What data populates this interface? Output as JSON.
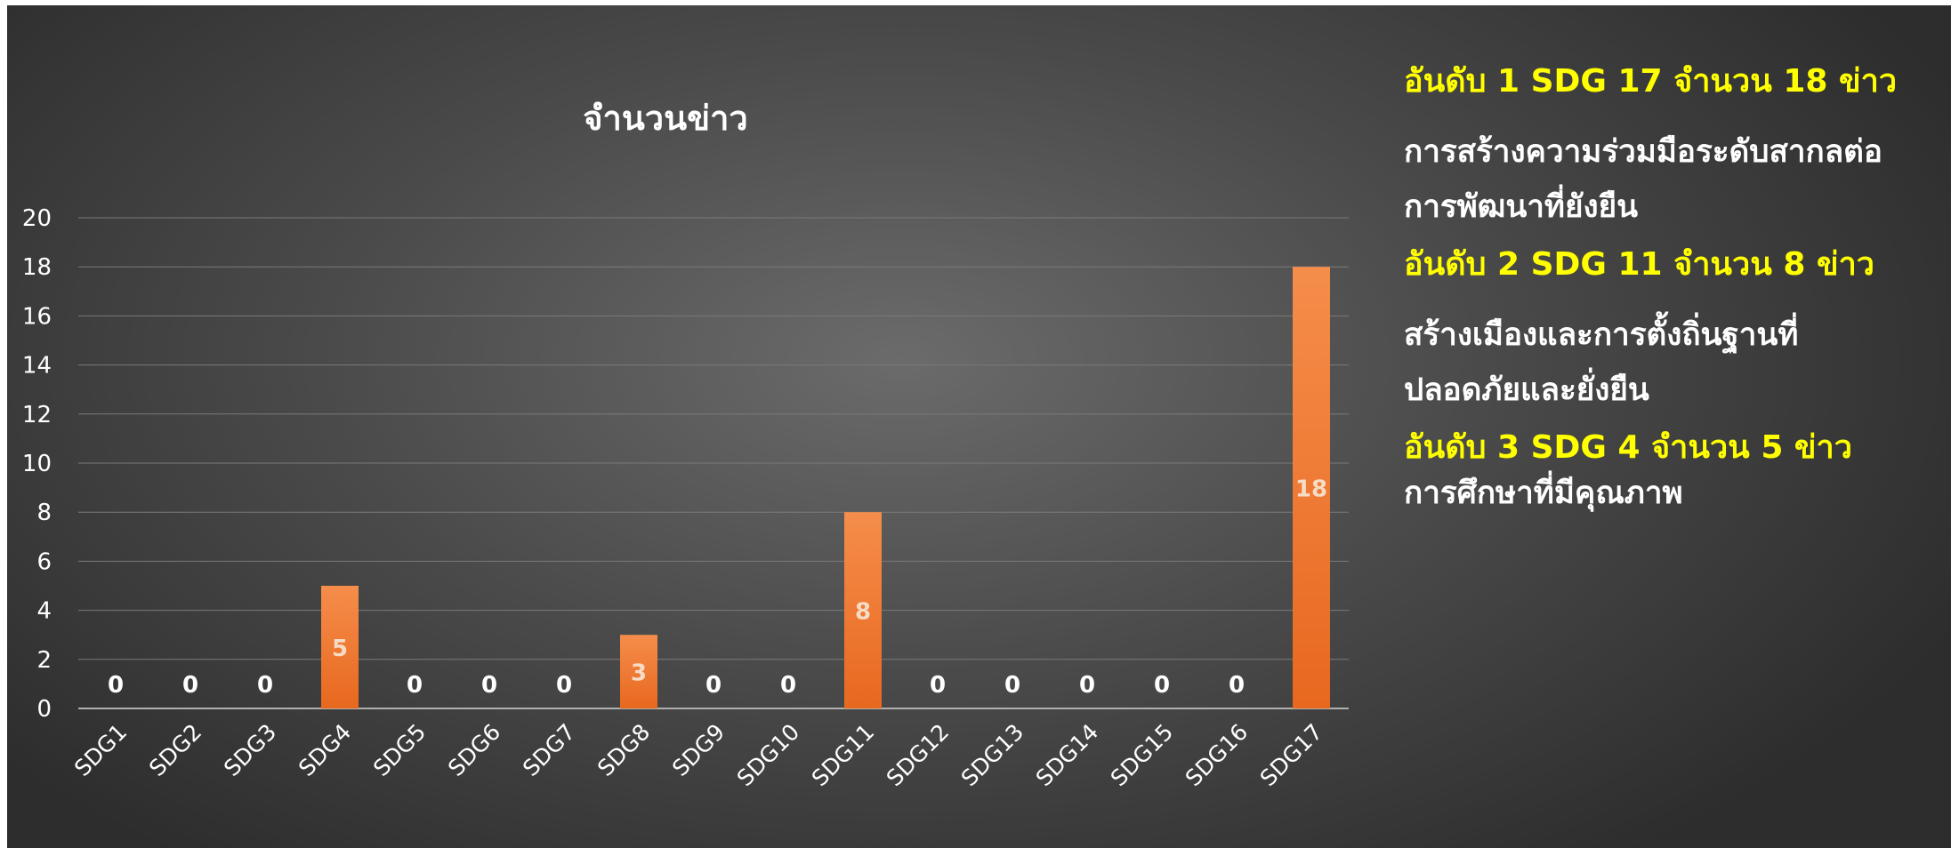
{
  "colors": {
    "background_center": "#6b6b6b",
    "background_edge": "#2d2d2d",
    "bar_top": "#f58d4b",
    "bar_bottom": "#e8681f",
    "ranking_heading": "#ffff00",
    "text": "#ffffff"
  },
  "chart_data": {
    "type": "bar",
    "title": "จำนวนข่าว",
    "xlabel": "",
    "ylabel": "",
    "categories": [
      "SDG1",
      "SDG2",
      "SDG3",
      "SDG4",
      "SDG5",
      "SDG6",
      "SDG7",
      "SDG8",
      "SDG9",
      "SDG10",
      "SDG11",
      "SDG12",
      "SDG13",
      "SDG14",
      "SDG15",
      "SDG16",
      "SDG17"
    ],
    "values": [
      0,
      0,
      0,
      5,
      0,
      0,
      0,
      3,
      0,
      0,
      8,
      0,
      0,
      0,
      0,
      0,
      18
    ],
    "ylim": [
      0,
      20
    ],
    "yticks": [
      0,
      2,
      4,
      6,
      8,
      10,
      12,
      14,
      16,
      18,
      20
    ],
    "grid": true,
    "legend": "none",
    "data_labels": true
  },
  "ranking": [
    {
      "heading": "อันดับ 1 SDG 17 จำนวน 18 ข่าว",
      "description": [
        "การสร้างความร่วมมือระดับสากลต่อ",
        "การพัฒนาที่ยังยืน"
      ]
    },
    {
      "heading": "อันดับ 2 SDG 11 จำนวน 8 ข่าว",
      "description": [
        "สร้างเมืองและการตั้งถิ่นฐานที่",
        "ปลอดภัยและยั่งยืน"
      ]
    },
    {
      "heading": "อันดับ 3 SDG 4 จำนวน 5 ข่าว",
      "description": [
        "การศึกษาที่มีคุณภาพ"
      ]
    }
  ]
}
